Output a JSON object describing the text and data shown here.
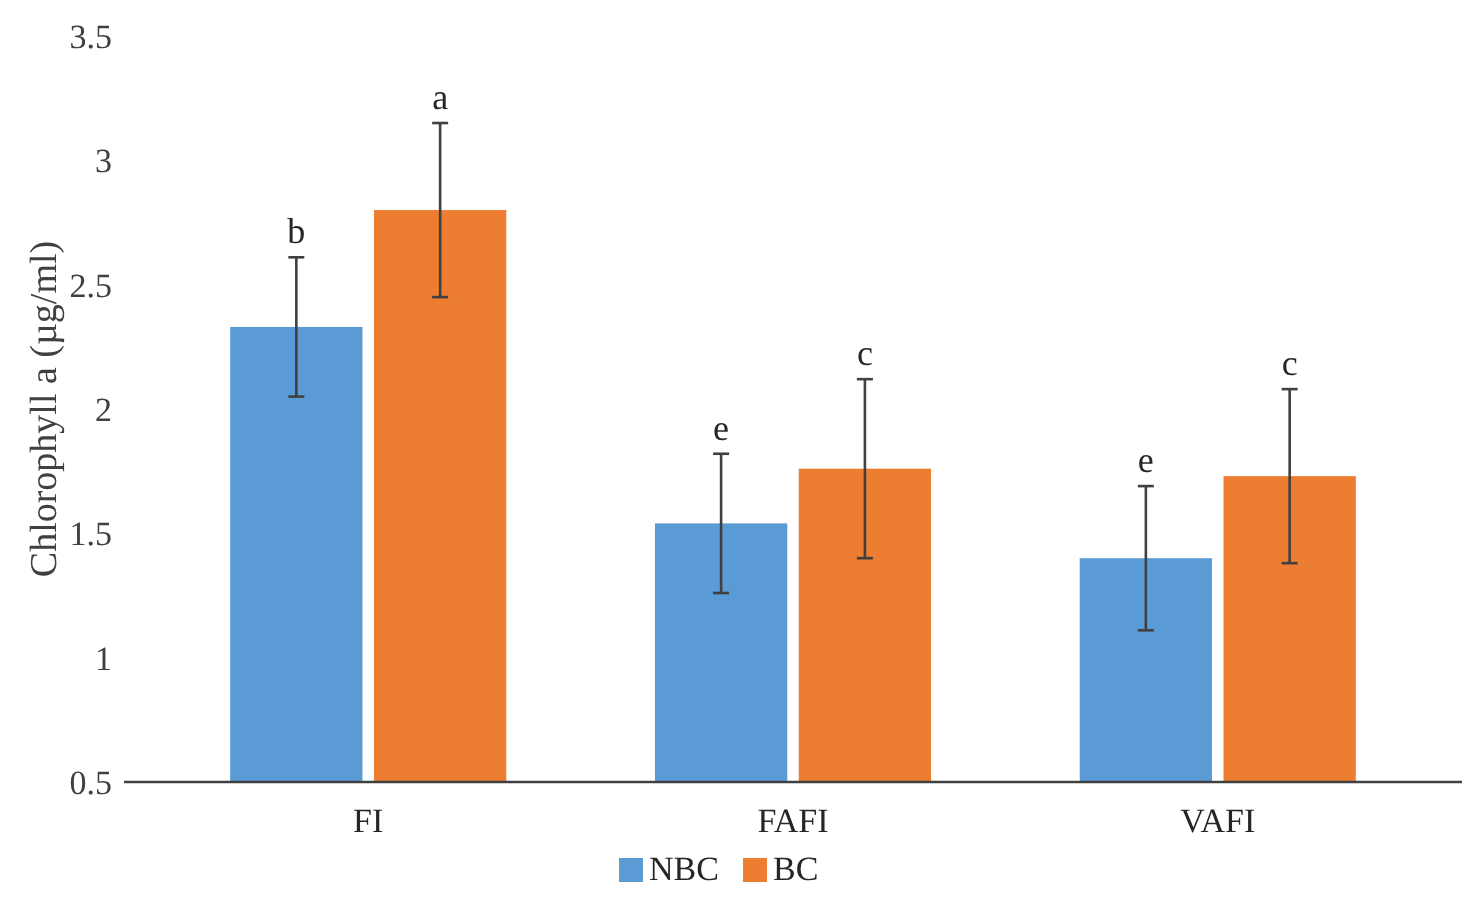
{
  "chart_data": {
    "type": "bar",
    "ylabel": "Chlorophyll a (µg/ml)",
    "categories": [
      "FI",
      "FAFI",
      "VAFI"
    ],
    "series": [
      {
        "name": "NBC",
        "color": "#5b9bd5",
        "values": [
          2.33,
          1.54,
          1.4
        ],
        "errors": [
          0.28,
          0.28,
          0.29
        ]
      },
      {
        "name": "BC",
        "color": "#ed7d31",
        "values": [
          2.8,
          1.76,
          1.73
        ],
        "errors": [
          0.35,
          0.36,
          0.35
        ]
      }
    ],
    "ylim": [
      0.5,
      3.5
    ],
    "yticks": [
      0.5,
      1,
      1.5,
      2,
      2.5,
      3,
      3.5
    ],
    "grid": false,
    "legend": "bottom",
    "annotations": [
      "b",
      "a",
      "e",
      "c",
      "e",
      "c"
    ]
  }
}
